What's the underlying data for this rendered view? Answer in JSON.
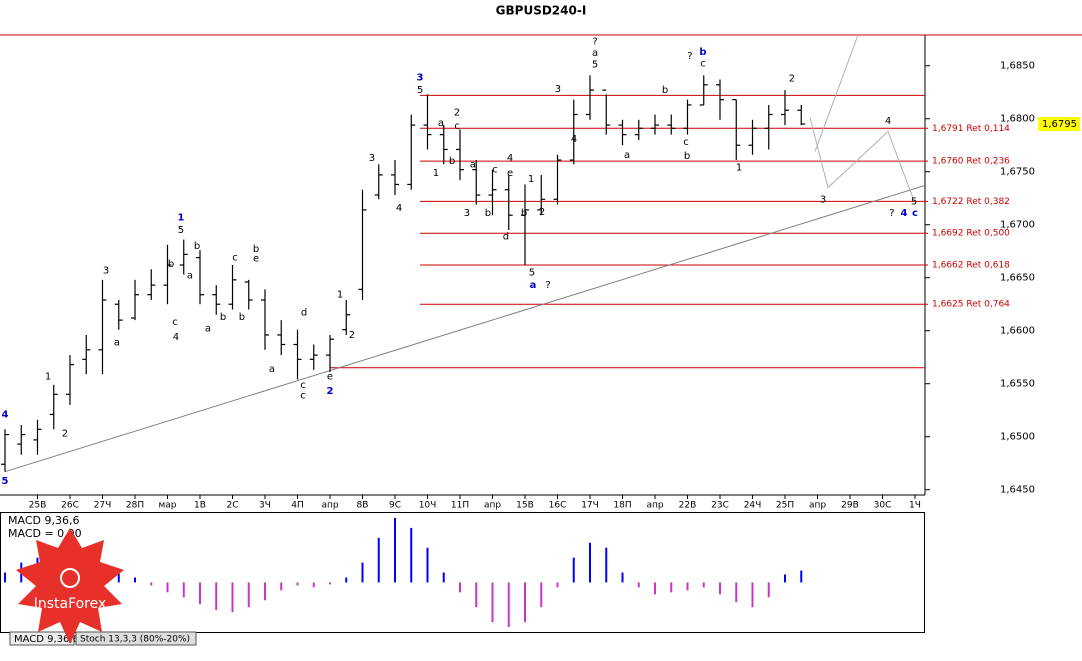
{
  "chart_data": [
    {
      "type": "ohlc",
      "title": "GBPUSD240-I",
      "categories": [
        null,
        null,
        "25В",
        null,
        "26С",
        null,
        "27Ч",
        null,
        "28П",
        null,
        "мар",
        null,
        "1В",
        null,
        "2С",
        null,
        "3Ч",
        null,
        "4П",
        null,
        "апр",
        null,
        "8В",
        null,
        "9С",
        null,
        "10Ч",
        null,
        "11П",
        null,
        "апр",
        null,
        "15В",
        null,
        "16С",
        null,
        "17Ч",
        null,
        "18П",
        null,
        "апр",
        null,
        "22В",
        null,
        "23С",
        null,
        "24Ч",
        null,
        "25П",
        null,
        "апр",
        null,
        "29В",
        null,
        "30С",
        null,
        "1Ч"
      ],
      "open": [
        1.6474,
        1.6493,
        1.6497,
        1.6521,
        1.654,
        1.6573,
        1.6582,
        1.6625,
        1.6612,
        1.6634,
        1.6643,
        1.6662,
        1.6669,
        1.6634,
        1.6625,
        1.6646,
        1.6629,
        1.6596,
        1.6587,
        1.6573,
        1.6577,
        1.6601,
        1.6639,
        1.6728,
        1.6747,
        1.6738,
        1.6794,
        1.6785,
        1.6771,
        1.6752,
        1.6728,
        1.6733,
        1.6709,
        1.6714,
        1.6724,
        1.6761,
        1.6804,
        1.6827,
        1.6794,
        1.6785,
        1.6791,
        1.6794,
        1.6791,
        1.6813,
        1.6832,
        1.6818,
        1.6775,
        1.6791,
        1.6804,
        1.6808,
        null,
        null,
        null,
        null,
        null,
        null,
        null
      ],
      "high": [
        1.6507,
        1.6511,
        1.6516,
        1.6549,
        1.6577,
        1.6596,
        1.6648,
        1.6629,
        1.6648,
        1.6658,
        1.6681,
        1.6686,
        1.6676,
        1.6643,
        1.6662,
        1.6648,
        1.6639,
        1.661,
        1.6601,
        1.6587,
        1.6596,
        1.6629,
        1.6733,
        1.6757,
        1.6761,
        1.6804,
        1.6823,
        1.6794,
        1.679,
        1.6761,
        1.6752,
        1.6747,
        1.6738,
        1.6747,
        1.6766,
        1.6818,
        1.6841,
        1.6823,
        1.6799,
        1.6799,
        1.6804,
        1.6804,
        1.6818,
        1.6841,
        1.6837,
        1.6818,
        1.6799,
        1.6813,
        1.6827,
        1.6813,
        null,
        null,
        null,
        null,
        null,
        null,
        null
      ],
      "low": [
        1.6467,
        1.6483,
        1.6483,
        1.6507,
        1.653,
        1.6559,
        1.6559,
        1.6601,
        1.661,
        1.6629,
        1.6625,
        1.6653,
        1.6625,
        1.6615,
        1.662,
        1.662,
        1.6582,
        1.6577,
        1.6554,
        1.6563,
        1.6561,
        1.6596,
        1.6629,
        1.6724,
        1.6728,
        1.6733,
        1.6771,
        1.6757,
        1.6742,
        1.6719,
        1.6709,
        1.6695,
        1.6662,
        1.6709,
        1.6719,
        1.6757,
        1.6799,
        1.6785,
        1.6775,
        1.678,
        1.6785,
        1.6785,
        1.6785,
        1.6813,
        1.6799,
        1.6761,
        1.6766,
        1.6771,
        1.6794,
        1.6794,
        null,
        null,
        null,
        null,
        null,
        null,
        null
      ],
      "close": [
        1.6502,
        1.6502,
        1.6507,
        1.654,
        1.6568,
        1.6582,
        1.6629,
        1.661,
        1.6634,
        1.6643,
        1.6662,
        1.6672,
        1.6634,
        1.6625,
        1.6648,
        1.6629,
        1.6596,
        1.6587,
        1.6573,
        1.6577,
        1.6592,
        1.6615,
        1.6714,
        1.6747,
        1.6738,
        1.6794,
        1.6785,
        1.6771,
        1.6752,
        1.6728,
        1.6733,
        1.6709,
        1.6714,
        1.6724,
        1.6761,
        1.6804,
        1.6827,
        1.6794,
        1.6785,
        1.6791,
        1.6794,
        1.6791,
        1.6813,
        1.6832,
        1.6818,
        1.6775,
        1.6791,
        1.6804,
        1.6808,
        1.6795,
        null,
        null,
        null,
        null,
        null,
        null,
        null
      ],
      "color": "#000000",
      "ylim": [
        1.6445,
        1.6879
      ],
      "yticks": [
        {
          "value": 1.645,
          "label": "1,6450"
        },
        {
          "value": 1.65,
          "label": "1,6500"
        },
        {
          "value": 1.655,
          "label": "1,6550"
        },
        {
          "value": 1.66,
          "label": "1,6600"
        },
        {
          "value": 1.665,
          "label": "1,6650"
        },
        {
          "value": 1.67,
          "label": "1,6700"
        },
        {
          "value": 1.675,
          "label": "1,6750"
        },
        {
          "value": 1.68,
          "label": "1,6800"
        },
        {
          "value": 1.685,
          "label": "1,6850"
        }
      ],
      "current_price": {
        "value": 1.6795,
        "label": "1,6795"
      },
      "levels": [
        {
          "value": 1.6791,
          "label": "1,6791 Ret 0,114"
        },
        {
          "value": 1.676,
          "label": "1,6760 Ret 0,236"
        },
        {
          "value": 1.6722,
          "label": "1,6722 Ret 0,382"
        },
        {
          "value": 1.6692,
          "label": "1,6692 Ret 0,500"
        },
        {
          "value": 1.6662,
          "label": "1,6662 Ret 0,618"
        },
        {
          "value": 1.6625,
          "label": "1,6625 Ret 0,764"
        }
      ],
      "level_color": "#cc0000",
      "lines": [
        1.6822,
        1.6565
      ],
      "trendline": [
        [
          0,
          1.6467
        ],
        [
          56.6,
          1.6737
        ]
      ],
      "forecast": [
        [
          [
            49.54,
            1.6801
          ],
          [
            50.65,
            1.6735
          ],
          [
            54.34,
            1.6788
          ],
          [
            55.88,
            1.6725
          ]
        ],
        [
          [
            49.85,
            1.6769
          ],
          [
            52.49,
            1.6879
          ]
        ]
      ],
      "annotations": [
        {
          "text": "3",
          "x": 25.54,
          "y": 1.6839,
          "color": "#0000cc"
        },
        {
          "text": "5",
          "x": 25.54,
          "y": 1.6827
        },
        {
          "text": "1",
          "x": 10.83,
          "y": 1.6707,
          "color": "#0000cc"
        },
        {
          "text": "5",
          "x": 10.83,
          "y": 1.6695
        },
        {
          "text": "2",
          "x": 20.0,
          "y": 1.6543,
          "color": "#0000cc"
        },
        {
          "text": "e",
          "x": 20.0,
          "y": 1.6557
        },
        {
          "text": "c",
          "x": 18.34,
          "y": 1.6549
        },
        {
          "text": "c",
          "x": 18.34,
          "y": 1.6539
        },
        {
          "text": "d",
          "x": 18.4,
          "y": 1.6617
        },
        {
          "text": "a",
          "x": 32.49,
          "y": 1.6643,
          "color": "#0000cc"
        },
        {
          "text": "5",
          "x": 32.43,
          "y": 1.6655
        },
        {
          "text": "?",
          "x": 33.42,
          "y": 1.6643
        },
        {
          "text": "?",
          "x": 36.31,
          "y": 1.6873
        },
        {
          "text": "a",
          "x": 36.31,
          "y": 1.6862
        },
        {
          "text": "5",
          "x": 36.31,
          "y": 1.6851
        },
        {
          "text": "?",
          "x": 42.15,
          "y": 1.6859
        },
        {
          "text": "b",
          "x": 42.95,
          "y": 1.6863,
          "color": "#0000cc"
        },
        {
          "text": "c",
          "x": 42.95,
          "y": 1.6852
        },
        {
          "text": "2",
          "x": 48.43,
          "y": 1.6838
        },
        {
          "text": "4",
          "x": 54.34,
          "y": 1.6798
        },
        {
          "text": "3",
          "x": 50.34,
          "y": 1.6724
        },
        {
          "text": "?",
          "x": 54.58,
          "y": 1.6711
        },
        {
          "text": "4",
          "x": 55.32,
          "y": 1.6711,
          "color": "#0000cc"
        },
        {
          "text": "5",
          "x": 55.94,
          "y": 1.6722
        },
        {
          "text": "c",
          "x": 56.0,
          "y": 1.6711,
          "color": "#0000cc"
        },
        {
          "text": "4",
          "x": 0,
          "y": 1.6521,
          "color": "#0000cc"
        },
        {
          "text": "5",
          "x": 0,
          "y": 1.6458,
          "color": "#0000cc"
        },
        {
          "text": "3",
          "x": 6.22,
          "y": 1.6657
        },
        {
          "text": "2",
          "x": 3.69,
          "y": 1.6503
        },
        {
          "text": "1",
          "x": 2.65,
          "y": 1.6557
        },
        {
          "text": "a",
          "x": 6.89,
          "y": 1.6589
        },
        {
          "text": "c",
          "x": 10.46,
          "y": 1.6608
        },
        {
          "text": "4",
          "x": 10.52,
          "y": 1.6594
        },
        {
          "text": "b",
          "x": 10.22,
          "y": 1.6663
        },
        {
          "text": "a",
          "x": 11.38,
          "y": 1.6652
        },
        {
          "text": "b",
          "x": 11.82,
          "y": 1.668
        },
        {
          "text": "a",
          "x": 12.49,
          "y": 1.6602
        },
        {
          "text": "b",
          "x": 13.42,
          "y": 1.6613
        },
        {
          "text": "c",
          "x": 14.15,
          "y": 1.6669
        },
        {
          "text": "b",
          "x": 14.58,
          "y": 1.6613
        },
        {
          "text": "b",
          "x": 15.45,
          "y": 1.6677
        },
        {
          "text": "e",
          "x": 15.45,
          "y": 1.6668
        },
        {
          "text": "a",
          "x": 16.43,
          "y": 1.6564
        },
        {
          "text": "1",
          "x": 20.62,
          "y": 1.6634
        },
        {
          "text": "2",
          "x": 21.35,
          "y": 1.6596
        },
        {
          "text": "3",
          "x": 22.58,
          "y": 1.6763
        },
        {
          "text": "4",
          "x": 24.25,
          "y": 1.6716
        },
        {
          "text": "2",
          "x": 27.82,
          "y": 1.6806
        },
        {
          "text": "c",
          "x": 27.82,
          "y": 1.6793
        },
        {
          "text": "a",
          "x": 26.83,
          "y": 1.6796
        },
        {
          "text": "b",
          "x": 27.51,
          "y": 1.676
        },
        {
          "text": "1",
          "x": 26.52,
          "y": 1.6749
        },
        {
          "text": "a",
          "x": 28.8,
          "y": 1.6757
        },
        {
          "text": "3",
          "x": 28.43,
          "y": 1.6711
        },
        {
          "text": "c",
          "x": 30.15,
          "y": 1.6752
        },
        {
          "text": "b",
          "x": 29.72,
          "y": 1.6711
        },
        {
          "text": "e",
          "x": 31.08,
          "y": 1.6749
        },
        {
          "text": "d",
          "x": 30.83,
          "y": 1.6689
        },
        {
          "text": "4",
          "x": 31.08,
          "y": 1.6763
        },
        {
          "text": "1",
          "x": 32.37,
          "y": 1.6743
        },
        {
          "text": "2",
          "x": 33.05,
          "y": 1.6712
        },
        {
          "text": "b",
          "x": 31.94,
          "y": 1.6711
        },
        {
          "text": "3",
          "x": 34.03,
          "y": 1.6828
        },
        {
          "text": "4",
          "x": 35.02,
          "y": 1.6781
        },
        {
          "text": "b",
          "x": 40.62,
          "y": 1.6827
        },
        {
          "text": "c",
          "x": 41.91,
          "y": 1.6778
        },
        {
          "text": "b",
          "x": 41.97,
          "y": 1.6765
        },
        {
          "text": "a",
          "x": 38.28,
          "y": 1.6766
        },
        {
          "text": "1",
          "x": 45.17,
          "y": 1.6754
        }
      ]
    },
    {
      "type": "histogram",
      "label": "MACD 9,36,6",
      "value_text": "MACD = 0.00",
      "values": [
        0.0001,
        0.0002,
        0.00025,
        0.00025,
        0.00022,
        0.0002,
        0.00018,
        0.0001,
        5e-05,
        -3e-05,
        -0.0001,
        -0.00015,
        -0.00022,
        -0.00028,
        -0.0003,
        -0.00025,
        -0.00018,
        -8e-05,
        -3e-05,
        -5e-05,
        -2e-05,
        5e-05,
        0.0002,
        0.00045,
        0.00065,
        0.00055,
        0.00035,
        0.0001,
        -0.0001,
        -0.00025,
        -0.0004,
        -0.00045,
        -0.0004,
        -0.00025,
        -5e-05,
        0.00025,
        0.0004,
        0.00035,
        0.0001,
        -5e-05,
        -0.00012,
        -0.0001,
        -8e-05,
        -5e-05,
        -0.00012,
        -0.0002,
        -0.00025,
        -0.00015,
        8e-05,
        0.00012,
        null,
        null,
        null,
        null,
        null,
        null,
        null
      ],
      "ylim": [
        -0.0005,
        0.0007
      ],
      "color_up": "#0000ff",
      "color_down": "#cc33cc"
    }
  ],
  "tabs": [
    "MACD 9,36,6",
    "Stoch 13,3,3 (80%-20%)"
  ],
  "logo": "InstaForex"
}
